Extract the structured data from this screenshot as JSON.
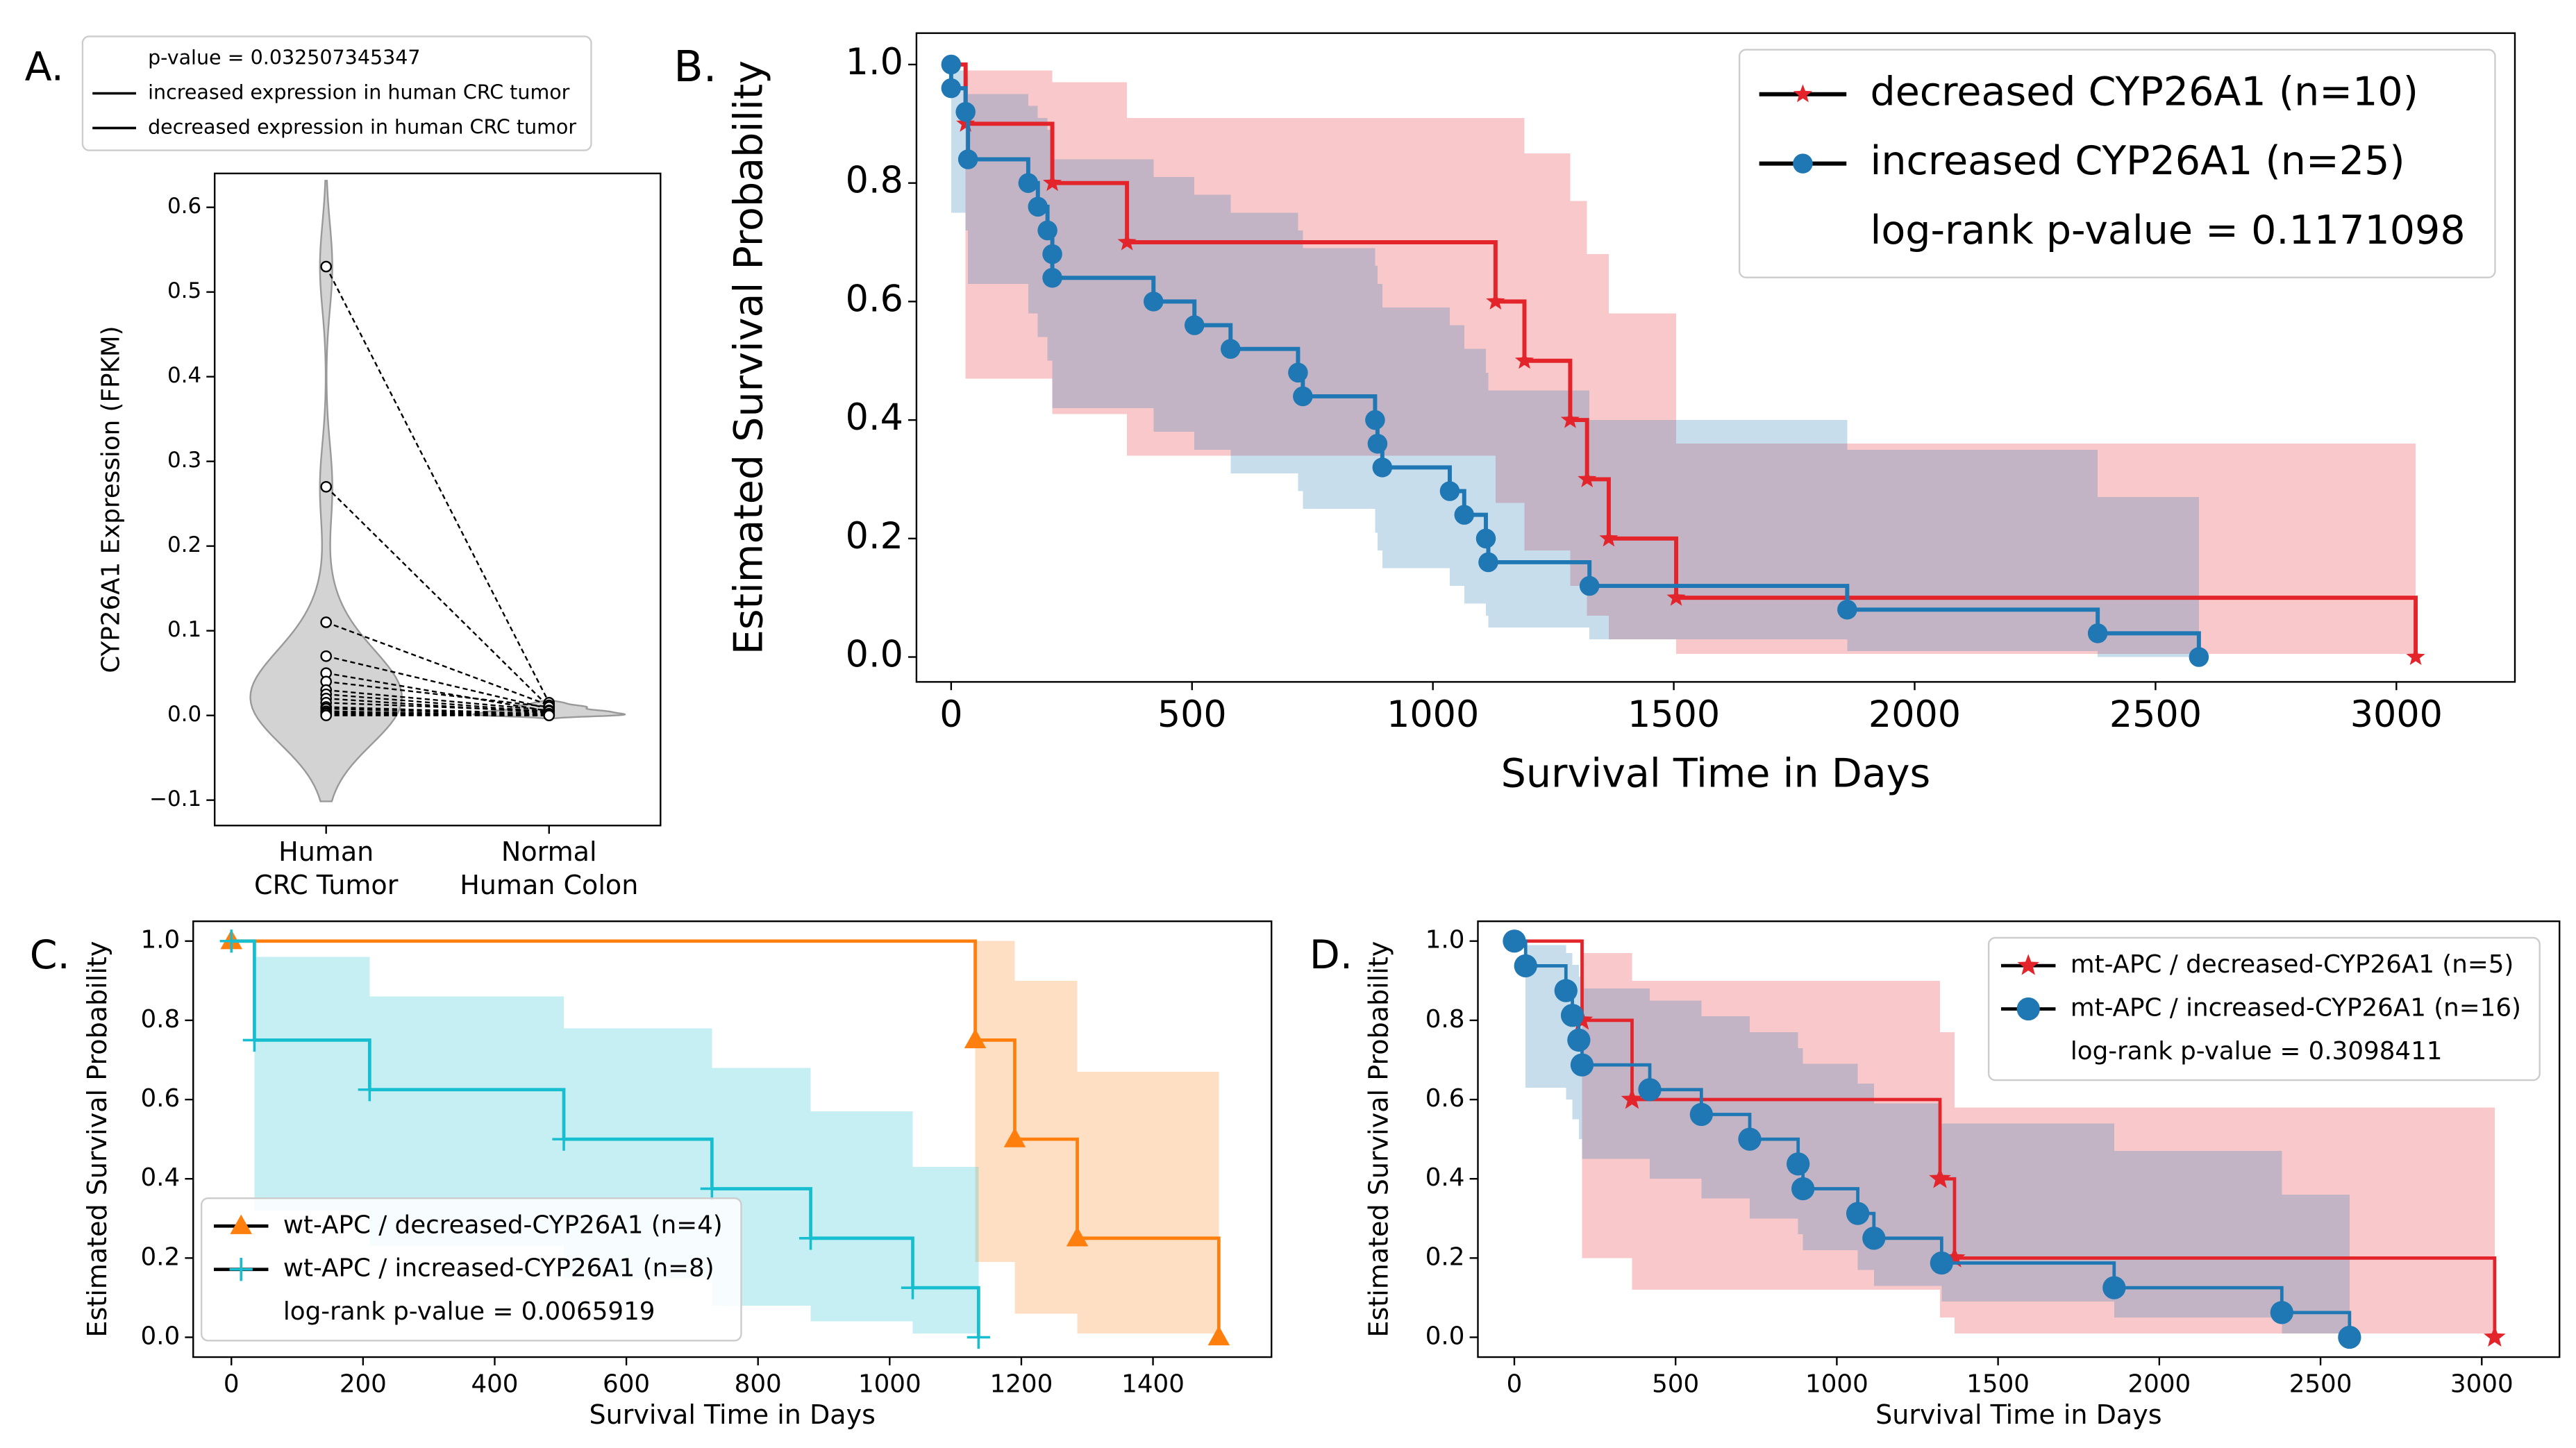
{
  "chart_data": [
    {
      "type": "violin",
      "panel_label": "A.",
      "y_label": "CYP26A1 Expression (FPKM)",
      "categories": [
        [
          "Human",
          "CRC Tumor"
        ],
        [
          "Normal",
          "Human Colon"
        ]
      ],
      "ylim": [
        -0.13,
        0.64
      ],
      "yticks": [
        {
          "value": -0.1,
          "label": "−0.1"
        },
        {
          "value": 0,
          "label": "0.0"
        },
        0.1,
        0.2,
        0.3,
        0.4,
        0.5,
        0.6
      ],
      "legend": "above",
      "legend_title": "p-value = 0.032507345347",
      "legend_entries": [
        {
          "name": "increased expression in human CRC tumor",
          "color": "#5aa5d6"
        },
        {
          "name": "decreased expression in human CRC tumor",
          "color": "#f08080"
        }
      ],
      "pairs": {
        "tumor": [
          0.53,
          0.27,
          0.11,
          0.07,
          0.05,
          0.04,
          0.03,
          0.025,
          0.02,
          0.015,
          0.01,
          0.008,
          0.005,
          0.003,
          0.002,
          0.0
        ],
        "normal": [
          0.015,
          0.01,
          0.012,
          0.008,
          0.005,
          0.01,
          0.006,
          0.004,
          0.003,
          0.005,
          0.002,
          0.001,
          0.0,
          0.001,
          0.0,
          0.0
        ]
      },
      "fill_color": "#d3d3d3"
    },
    {
      "type": "survival",
      "panel_label": "B.",
      "x_label": "Survival Time in Days",
      "y_label": "Estimated Survival Probability",
      "xlim": [
        -72,
        3246
      ],
      "xticks": [
        0,
        500,
        1000,
        1500,
        2000,
        2500,
        3000
      ],
      "ylim": [
        -0.042,
        1.053
      ],
      "yticks": [
        {
          "value": 0,
          "label": "0.0"
        },
        0.2,
        0.4,
        0.6,
        0.8,
        {
          "value": 1,
          "label": "1.0"
        }
      ],
      "legend": "upper right",
      "legend_note": "log-rank p-value = 0.1171098",
      "series": [
        {
          "name": "decreased CYP26A1 (n=10)",
          "color": "#e3242b",
          "marker": "star",
          "x": [
            0,
            30,
            210,
            365,
            1130,
            1190,
            1285,
            1320,
            1365,
            1505,
            3040
          ],
          "values": [
            1,
            0.9,
            0.8,
            0.7,
            0.6,
            0.5,
            0.4,
            0.3,
            0.2,
            0.1,
            0
          ],
          "ci_upper": [
            1,
            0.99,
            0.97,
            0.91,
            0.91,
            0.85,
            0.77,
            0.68,
            0.58,
            0.36,
            0.36
          ],
          "ci_lower": [
            1,
            0.47,
            0.41,
            0.34,
            0.26,
            0.18,
            0.12,
            0.07,
            0.03,
            0.005,
            0.005
          ]
        },
        {
          "name": "increased CYP26A1 (n=25)",
          "color": "#1f77b4",
          "marker": "circle",
          "x": [
            0,
            0,
            30,
            35,
            160,
            180,
            200,
            210,
            210,
            420,
            505,
            580,
            720,
            730,
            880,
            885,
            895,
            1035,
            1065,
            1110,
            1115,
            1325,
            1860,
            2380,
            2590
          ],
          "values": [
            1,
            0.96,
            0.92,
            0.84,
            0.8,
            0.76,
            0.72,
            0.68,
            0.64,
            0.6,
            0.56,
            0.52,
            0.48,
            0.44,
            0.4,
            0.36,
            0.32,
            0.28,
            0.24,
            0.2,
            0.16,
            0.12,
            0.08,
            0.04,
            0
          ],
          "ci_upper": [
            1,
            0.99,
            0.98,
            0.95,
            0.93,
            0.91,
            0.89,
            0.86,
            0.84,
            0.81,
            0.78,
            0.75,
            0.72,
            0.69,
            0.66,
            0.63,
            0.59,
            0.56,
            0.52,
            0.48,
            0.45,
            0.4,
            0.35,
            0.27,
            0.27
          ],
          "ci_lower": [
            1,
            0.75,
            0.72,
            0.63,
            0.58,
            0.54,
            0.5,
            0.46,
            0.42,
            0.38,
            0.35,
            0.31,
            0.28,
            0.25,
            0.21,
            0.18,
            0.15,
            0.12,
            0.09,
            0.07,
            0.05,
            0.03,
            0.01,
            0,
            0
          ]
        }
      ]
    },
    {
      "type": "survival",
      "panel_label": "C.",
      "x_label": "Survival Time in Days",
      "y_label": "Estimated Survival Probability",
      "xlim": [
        -58,
        1580
      ],
      "xticks": [
        0,
        200,
        400,
        600,
        800,
        1000,
        1200,
        1400
      ],
      "ylim": [
        -0.05,
        1.05
      ],
      "yticks": [
        {
          "value": 0,
          "label": "0.0"
        },
        0.2,
        0.4,
        0.6,
        0.8,
        {
          "value": 1,
          "label": "1.0"
        }
      ],
      "legend": "lower left",
      "legend_note": "log-rank p-value = 0.0065919",
      "series": [
        {
          "name": "wt-APC / decreased-CYP26A1 (n=4)",
          "color": "#ff7f0e",
          "marker": "triangle",
          "x": [
            0,
            1130,
            1190,
            1285,
            1500
          ],
          "values": [
            1,
            0.75,
            0.5,
            0.25,
            0
          ],
          "ci_upper": [
            1,
            1,
            0.9,
            0.67,
            0.67
          ],
          "ci_lower": [
            1,
            0.19,
            0.06,
            0.01,
            0.01
          ]
        },
        {
          "name": "wt-APC / increased-CYP26A1 (n=8)",
          "color": "#17becf",
          "marker": "plus",
          "x": [
            0,
            35,
            210,
            505,
            730,
            880,
            1035,
            1135
          ],
          "values": [
            1,
            0.75,
            0.625,
            0.5,
            0.375,
            0.25,
            0.125,
            0
          ],
          "ci_upper": [
            1,
            0.96,
            0.86,
            0.78,
            0.68,
            0.57,
            0.43,
            0.43
          ],
          "ci_lower": [
            1,
            0.32,
            0.23,
            0.15,
            0.08,
            0.04,
            0.01,
            0.01
          ]
        }
      ]
    },
    {
      "type": "survival",
      "panel_label": "D.",
      "x_label": "Survival Time in Days",
      "y_label": "Estimated Survival Probability",
      "xlim": [
        -113,
        3241
      ],
      "xticks": [
        0,
        500,
        1000,
        1500,
        2000,
        2500,
        3000
      ],
      "ylim": [
        -0.05,
        1.05
      ],
      "yticks": [
        {
          "value": 0,
          "label": "0.0"
        },
        0.2,
        0.4,
        0.6,
        0.8,
        {
          "value": 1,
          "label": "1.0"
        }
      ],
      "legend": "upper right",
      "legend_note": "log-rank p-value = 0.3098411",
      "series": [
        {
          "name": "mt-APC / decreased-CYP26A1 (n=5)",
          "color": "#e3242b",
          "marker": "star",
          "x": [
            0,
            210,
            365,
            1320,
            1365,
            3040
          ],
          "values": [
            1,
            0.8,
            0.6,
            0.4,
            0.2,
            0
          ],
          "ci_upper": [
            1,
            0.97,
            0.9,
            0.77,
            0.58,
            0.58
          ],
          "ci_lower": [
            1,
            0.2,
            0.12,
            0.05,
            0.01,
            0.01
          ]
        },
        {
          "name": "mt-APC / increased-CYP26A1 (n=16)",
          "color": "#1f77b4",
          "marker": "circle",
          "x": [
            0,
            35,
            160,
            180,
            200,
            210,
            420,
            580,
            730,
            880,
            895,
            1065,
            1115,
            1325,
            1860,
            2380,
            2590
          ],
          "values": [
            1,
            0.9375,
            0.875,
            0.8125,
            0.75,
            0.6875,
            0.625,
            0.5625,
            0.5,
            0.4375,
            0.375,
            0.3125,
            0.25,
            0.1875,
            0.125,
            0.0625,
            0
          ],
          "ci_upper": [
            1,
            0.99,
            0.97,
            0.94,
            0.91,
            0.88,
            0.85,
            0.81,
            0.77,
            0.73,
            0.69,
            0.64,
            0.59,
            0.54,
            0.47,
            0.36,
            0.36
          ],
          "ci_lower": [
            1,
            0.63,
            0.6,
            0.55,
            0.5,
            0.45,
            0.4,
            0.35,
            0.3,
            0.26,
            0.22,
            0.17,
            0.13,
            0.09,
            0.05,
            0.01,
            0.01
          ]
        }
      ]
    }
  ]
}
